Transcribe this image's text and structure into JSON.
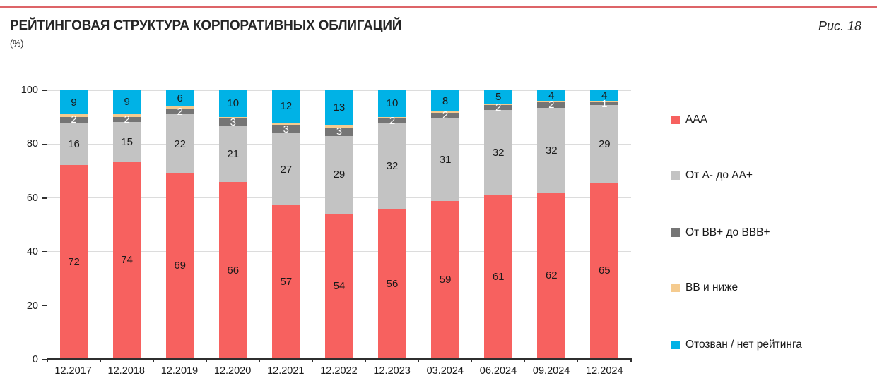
{
  "header": {
    "title": "РЕЙТИНГОВАЯ СТРУКТУРА КОРПОРАТИВНЫХ ОБЛИГАЦИЙ",
    "subtitle": "(%)",
    "figure_label": "Рис. 18"
  },
  "colors": {
    "accent_line": "#dd6468",
    "grid": "#dcdcdc",
    "axis": "#2f2f2f",
    "label_dark": "#1a1a1a",
    "label_light": "#ffffff",
    "aaa": "#f7615f",
    "a_to_aa": "#c3c3c3",
    "bb_to_bbb": "#757575",
    "bb_below": "#f5cb8f",
    "withdrawn": "#00b2e6"
  },
  "chart_data": {
    "type": "bar",
    "stacked": true,
    "title": "РЕЙТИНГОВАЯ СТРУКТУРА КОРПОРАТИВНЫХ ОБЛИГАЦИЙ",
    "ylabel": "(%)",
    "ylim": [
      0,
      100
    ],
    "yticks": [
      0,
      20,
      40,
      60,
      80,
      100
    ],
    "grid": true,
    "legend_position": "right",
    "categories": [
      "12.2017",
      "12.2018",
      "12.2019",
      "12.2020",
      "12.2021",
      "12.2022",
      "12.2023",
      "03.2024",
      "06.2024",
      "09.2024",
      "12.2024"
    ],
    "series": [
      {
        "name": "AAA",
        "color_key": "aaa",
        "label_color": "#1a1a1a",
        "labels_shown": true,
        "values": [
          72,
          74,
          69,
          66,
          57,
          54,
          56,
          59,
          61,
          62,
          65
        ]
      },
      {
        "name": "От А- до АА+",
        "color_key": "a_to_aa",
        "label_color": "#1a1a1a",
        "labels_shown": true,
        "values": [
          16,
          15,
          22,
          21,
          27,
          29,
          32,
          31,
          32,
          32,
          29
        ]
      },
      {
        "name": "От ВВ+ до ВВВ+",
        "color_key": "bb_to_bbb",
        "label_color": "#ffffff",
        "labels_shown": true,
        "values": [
          2,
          2,
          2,
          3,
          3,
          3,
          2,
          2,
          2,
          2,
          1
        ]
      },
      {
        "name": "ВВ и ниже",
        "color_key": "bb_below",
        "label_color": "#1a1a1a",
        "labels_shown": false,
        "values": [
          1,
          1,
          1,
          0.5,
          1,
          1,
          0.5,
          0.5,
          0.5,
          0.5,
          0.5
        ]
      },
      {
        "name": "Отозван / нет рейтинга",
        "color_key": "withdrawn",
        "label_color": "#1a1a1a",
        "labels_shown": true,
        "values": [
          9,
          9,
          6,
          10,
          12,
          13,
          10,
          8,
          5,
          4,
          4
        ]
      }
    ]
  },
  "legend_item_tops": [
    161,
    240,
    321,
    399,
    480
  ]
}
